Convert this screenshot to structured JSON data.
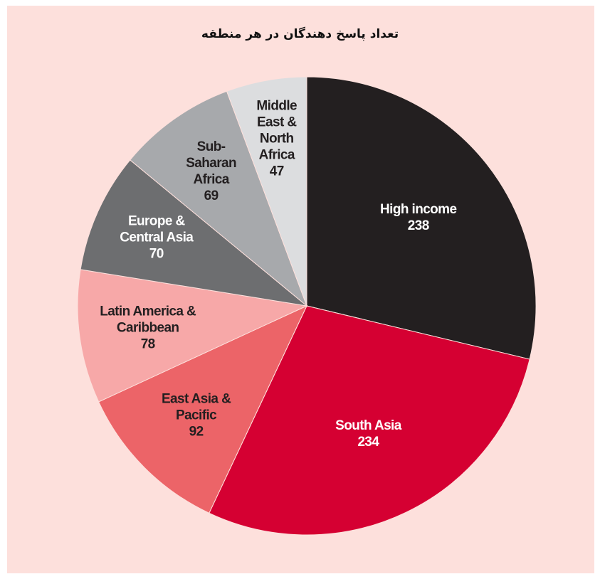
{
  "chart_data": {
    "type": "pie",
    "title": "تعداد پاسخ دهندگان در هر منطقه",
    "categories": [
      "High income",
      "South Asia",
      "East Asia & Pacific",
      "Latin America & Caribbean",
      "Europe & Central Asia",
      "Sub-Saharan Africa",
      "Middle East & North Africa"
    ],
    "values": [
      238,
      234,
      92,
      78,
      70,
      69,
      47
    ],
    "colors": [
      "#231f20",
      "#d50032",
      "#ec6468",
      "#f7a8a8",
      "#6d6e70",
      "#a7a9ac",
      "#dcdddf"
    ]
  }
}
